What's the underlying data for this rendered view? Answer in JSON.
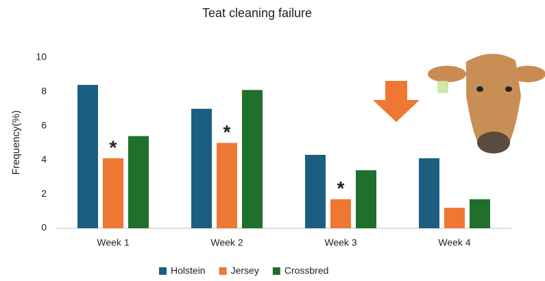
{
  "chart_data": {
    "type": "bar",
    "title": "Teat cleaning failure",
    "y_label": "Frequency(%)",
    "categories": [
      "Week 1",
      "Week 2",
      "Week 3",
      "Week 4"
    ],
    "series": [
      {
        "name": "Holstein",
        "color": "#1b5e82",
        "values": [
          8.4,
          7.0,
          4.3,
          4.1
        ]
      },
      {
        "name": "Jersey",
        "color": "#ee7734",
        "values": [
          4.1,
          5.0,
          1.7,
          1.2
        ]
      },
      {
        "name": "Crossbred",
        "color": "#1f6f2d",
        "values": [
          5.4,
          8.1,
          3.4,
          1.7
        ]
      }
    ],
    "annotations": [
      {
        "text": "*",
        "category": "Week 1",
        "series": "Jersey"
      },
      {
        "text": "*",
        "category": "Week 2",
        "series": "Jersey"
      },
      {
        "text": "*",
        "category": "Week 3",
        "series": "Jersey"
      }
    ],
    "ylim": [
      0,
      10
    ],
    "yticks": [
      0,
      2,
      4,
      6,
      8,
      10
    ],
    "grid": false,
    "legend": "bottom"
  }
}
